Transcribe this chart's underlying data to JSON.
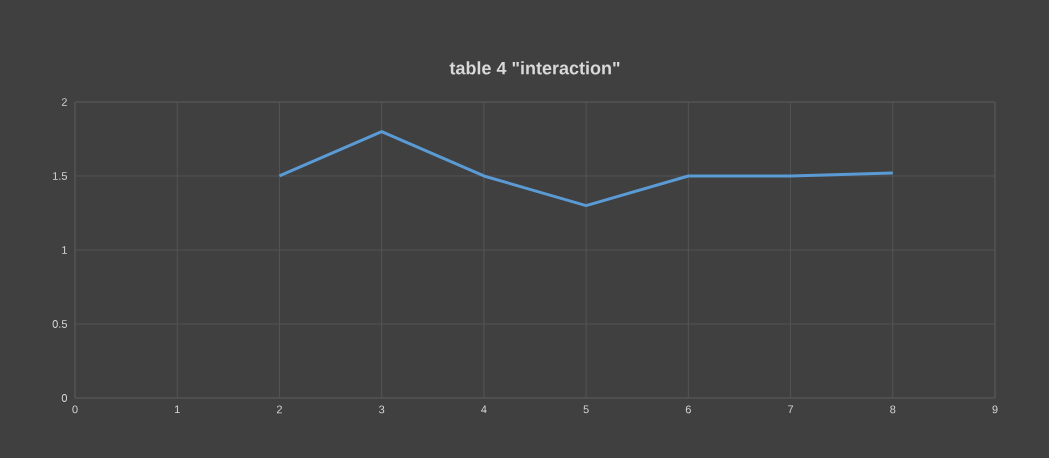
{
  "chart_data": {
    "type": "line",
    "title": "table 4 \"interaction\"",
    "x": [
      2,
      3,
      4,
      5,
      6,
      7,
      8
    ],
    "values": [
      1.5,
      1.8,
      1.5,
      1.3,
      1.5,
      1.5,
      1.52
    ],
    "color": "#5b9bd5",
    "xlim": [
      0,
      9
    ],
    "xticks": [
      0,
      1,
      2,
      3,
      4,
      5,
      6,
      7,
      8,
      9
    ],
    "ylim": [
      0,
      2
    ],
    "yticks": [
      0,
      0.5,
      1,
      1.5,
      2
    ],
    "grid": true
  }
}
